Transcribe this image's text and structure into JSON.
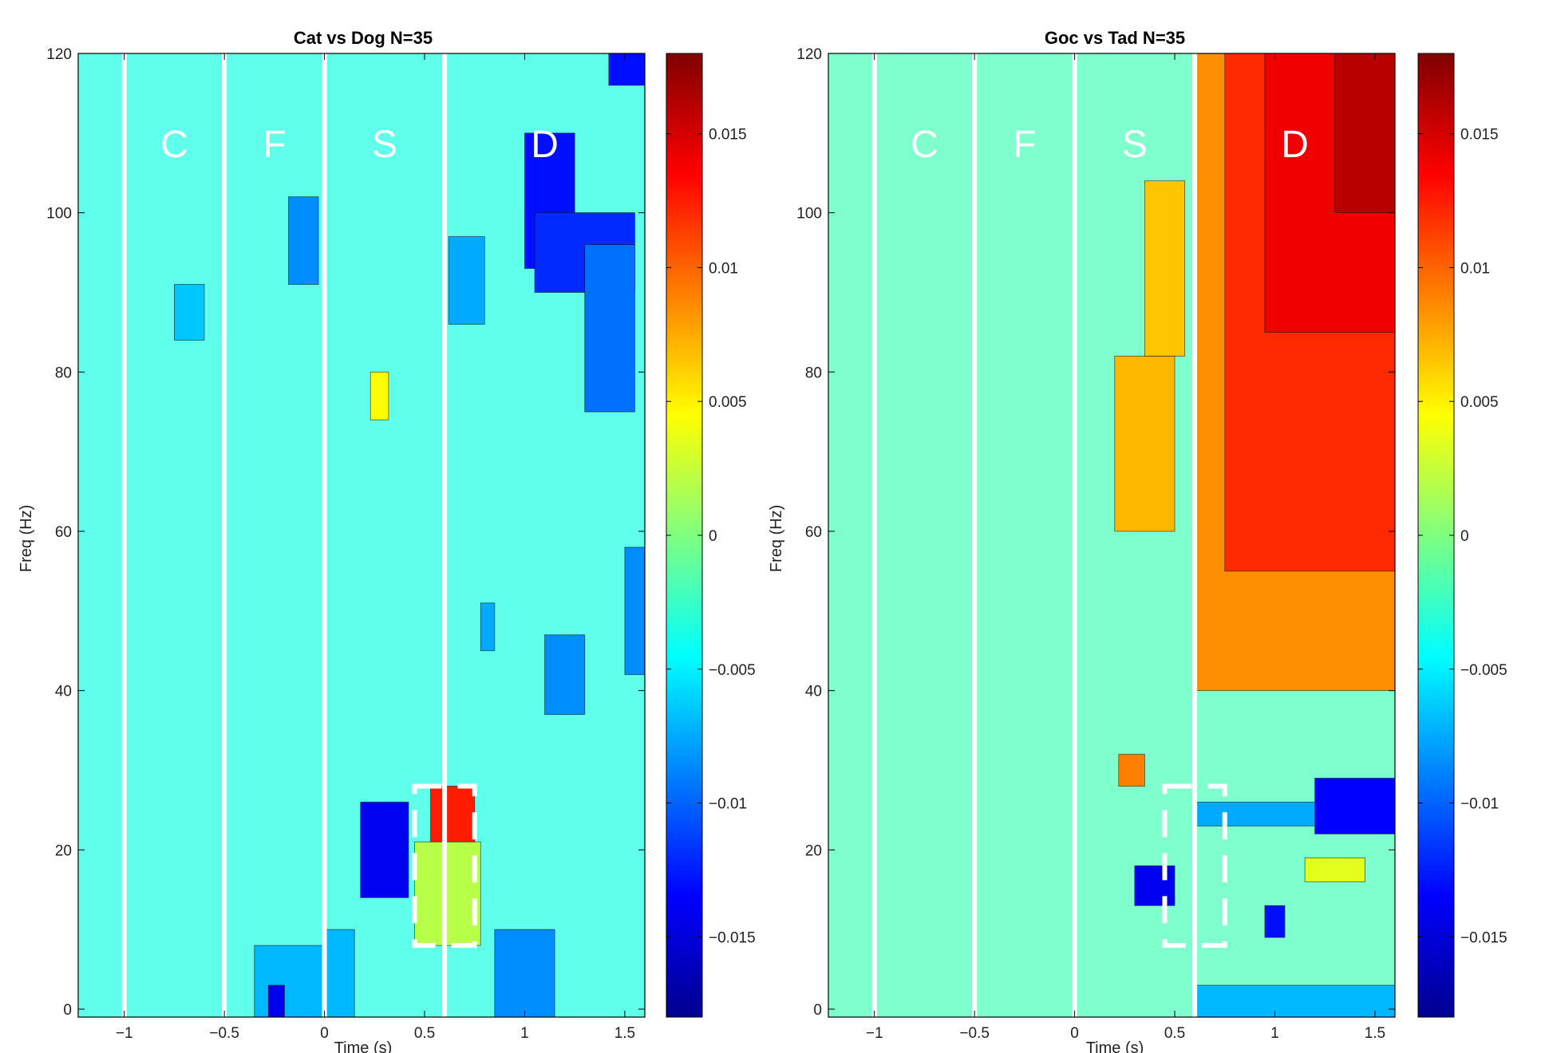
{
  "chart_data": [
    {
      "type": "heatmap",
      "title": "Cat vs Dog N=35",
      "xlabel": "Time (s)",
      "ylabel": "Freq (Hz)",
      "xlim": [
        -1.23,
        1.6
      ],
      "ylim": [
        -1,
        120
      ],
      "x_ticks": [
        -1,
        -0.5,
        0,
        0.5,
        1,
        1.5
      ],
      "y_ticks": [
        0,
        20,
        40,
        60,
        80,
        100,
        120
      ],
      "epoch_boundaries": [
        -1,
        -0.5,
        0,
        0.6
      ],
      "epoch_labels": [
        {
          "label": "C",
          "time": -0.75
        },
        {
          "label": "F",
          "time": -0.25
        },
        {
          "label": "S",
          "time": 0.3
        },
        {
          "label": "D",
          "time": 1.1
        }
      ],
      "epoch_label_freq": 107,
      "dashed_box": {
        "time": [
          0.45,
          0.75
        ],
        "freq": [
          8,
          28
        ]
      },
      "colorbar": {
        "min": -0.018,
        "max": 0.018,
        "ticks": [
          -0.015,
          -0.01,
          -0.005,
          0,
          0.005,
          0.01,
          0.015
        ]
      },
      "background_value": -0.0035,
      "clusters": [
        {
          "t": [
            0.18,
            0.42
          ],
          "f": [
            14,
            26
          ],
          "value": -0.014
        },
        {
          "t": [
            0.53,
            0.75
          ],
          "f": [
            21,
            28
          ],
          "value": 0.0125
        },
        {
          "t": [
            0.45,
            0.78
          ],
          "f": [
            8,
            21
          ],
          "value": 0.002
        },
        {
          "t": [
            1.0,
            1.25
          ],
          "f": [
            93,
            110
          ],
          "value": -0.013
        },
        {
          "t": [
            1.05,
            1.55
          ],
          "f": [
            90,
            100
          ],
          "value": -0.012
        },
        {
          "t": [
            1.3,
            1.55
          ],
          "f": [
            75,
            96
          ],
          "value": -0.0095
        },
        {
          "t": [
            1.42,
            1.6
          ],
          "f": [
            116,
            120
          ],
          "value": -0.013
        },
        {
          "t": [
            -0.18,
            -0.03
          ],
          "f": [
            91,
            102
          ],
          "value": -0.0085
        },
        {
          "t": [
            0.62,
            0.8
          ],
          "f": [
            86,
            97
          ],
          "value": -0.0075
        },
        {
          "t": [
            1.1,
            1.3
          ],
          "f": [
            37,
            47
          ],
          "value": -0.0085
        },
        {
          "t": [
            0.78,
            0.85
          ],
          "f": [
            45,
            51
          ],
          "value": -0.0075
        },
        {
          "t": [
            1.5,
            1.6
          ],
          "f": [
            42,
            58
          ],
          "value": -0.0085
        },
        {
          "t": [
            0.85,
            1.15
          ],
          "f": [
            -1,
            10
          ],
          "value": -0.0085
        },
        {
          "t": [
            0.0,
            0.15
          ],
          "f": [
            -1,
            10
          ],
          "value": -0.007
        },
        {
          "t": [
            -0.35,
            0.0
          ],
          "f": [
            -1,
            8
          ],
          "value": -0.007
        },
        {
          "t": [
            -0.75,
            -0.6
          ],
          "f": [
            84,
            91
          ],
          "value": -0.0065
        },
        {
          "t": [
            0.23,
            0.32
          ],
          "f": [
            74,
            80
          ],
          "value": 0.0045
        },
        {
          "t": [
            -0.28,
            -0.2
          ],
          "f": [
            -1,
            3
          ],
          "value": -0.014
        }
      ]
    },
    {
      "type": "heatmap",
      "title": "Goc vs Tad N=35",
      "xlabel": "Time (s)",
      "ylabel": "Freq (Hz)",
      "xlim": [
        -1.23,
        1.6
      ],
      "ylim": [
        -1,
        120
      ],
      "x_ticks": [
        -1,
        -0.5,
        0,
        0.5,
        1,
        1.5
      ],
      "y_ticks": [
        0,
        20,
        40,
        60,
        80,
        100,
        120
      ],
      "epoch_boundaries": [
        -1,
        -0.5,
        0,
        0.6
      ],
      "epoch_labels": [
        {
          "label": "C",
          "time": -0.75
        },
        {
          "label": "F",
          "time": -0.25
        },
        {
          "label": "S",
          "time": 0.3
        },
        {
          "label": "D",
          "time": 1.1
        }
      ],
      "epoch_label_freq": 107,
      "dashed_box": {
        "time": [
          0.45,
          0.75
        ],
        "freq": [
          8,
          28
        ]
      },
      "colorbar": {
        "min": -0.018,
        "max": 0.018,
        "ticks": [
          -0.015,
          -0.01,
          -0.005,
          0,
          0.005,
          0.01,
          0.015
        ]
      },
      "background_value": -0.002,
      "clusters": [
        {
          "t": [
            0.6,
            1.6
          ],
          "f": [
            40,
            120
          ],
          "value": 0.0085
        },
        {
          "t": [
            0.75,
            1.6
          ],
          "f": [
            55,
            120
          ],
          "value": 0.012
        },
        {
          "t": [
            0.95,
            1.6
          ],
          "f": [
            85,
            120
          ],
          "value": 0.014
        },
        {
          "t": [
            1.3,
            1.6
          ],
          "f": [
            100,
            120
          ],
          "value": 0.016
        },
        {
          "t": [
            0.2,
            0.5
          ],
          "f": [
            60,
            82
          ],
          "value": 0.007
        },
        {
          "t": [
            0.35,
            0.55
          ],
          "f": [
            82,
            104
          ],
          "value": 0.0065
        },
        {
          "t": [
            0.22,
            0.35
          ],
          "f": [
            28,
            32
          ],
          "value": 0.009
        },
        {
          "t": [
            1.2,
            1.6
          ],
          "f": [
            22,
            29
          ],
          "value": -0.0135
        },
        {
          "t": [
            0.6,
            1.2
          ],
          "f": [
            23,
            26
          ],
          "value": -0.0075
        },
        {
          "t": [
            0.3,
            0.5
          ],
          "f": [
            13,
            18
          ],
          "value": -0.014
        },
        {
          "t": [
            0.95,
            1.05
          ],
          "f": [
            9,
            13
          ],
          "value": -0.013
        },
        {
          "t": [
            0.6,
            1.6
          ],
          "f": [
            -1,
            3
          ],
          "value": -0.007
        },
        {
          "t": [
            1.15,
            1.45
          ],
          "f": [
            16,
            19
          ],
          "value": 0.0035
        }
      ]
    }
  ]
}
